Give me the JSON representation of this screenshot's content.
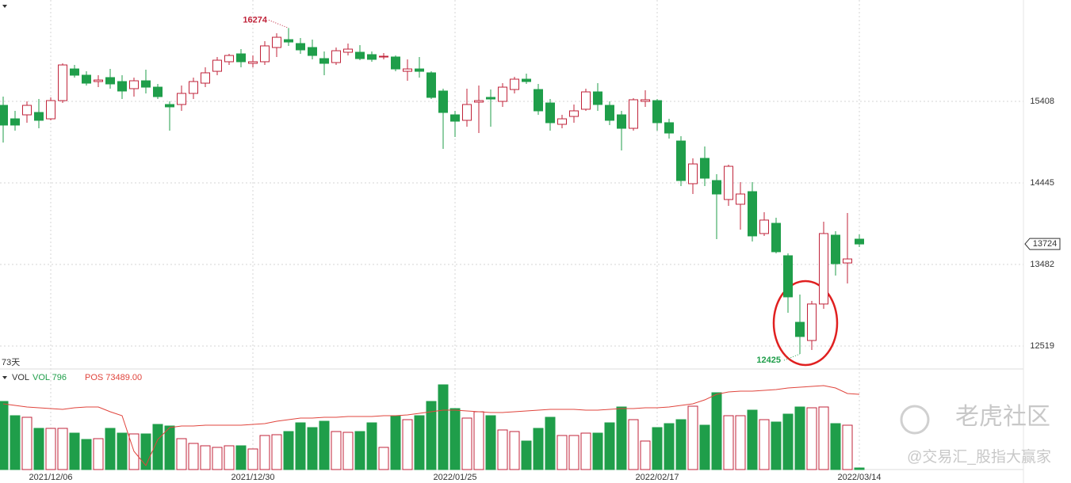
{
  "chart_data": {
    "type": "candlestick",
    "categories": [
      null,
      null,
      null,
      null,
      "2021/12/06",
      null,
      null,
      null,
      null,
      null,
      null,
      null,
      null,
      null,
      null,
      null,
      null,
      null,
      null,
      null,
      null,
      "2021/12/30",
      null,
      null,
      null,
      null,
      null,
      null,
      null,
      null,
      null,
      null,
      null,
      null,
      null,
      null,
      null,
      null,
      "2022/01/25",
      null,
      null,
      null,
      null,
      null,
      null,
      null,
      null,
      null,
      null,
      null,
      null,
      null,
      null,
      null,
      null,
      "2022/02/17",
      null,
      null,
      null,
      null,
      null,
      null,
      null,
      null,
      null,
      null,
      null,
      null,
      null,
      null,
      null,
      null,
      "2022/03/14"
    ],
    "open": [
      15361,
      15202,
      15249,
      15277,
      15202,
      15417,
      15791,
      15717,
      15642,
      15689,
      15642,
      15558,
      15651,
      15576,
      15371,
      15371,
      15502,
      15623,
      15763,
      15876,
      15969,
      15857,
      15876,
      16044,
      16137,
      16091,
      16044,
      15913,
      15866,
      15988,
      15988,
      15960,
      15932,
      15932,
      15763,
      15791,
      15745,
      15530,
      15249,
      15184,
      15399,
      15455,
      15408,
      15548,
      15670,
      15548,
      15389,
      15137,
      15230,
      15315,
      15520,
      15361,
      15249,
      15090,
      15408,
      15417,
      15156,
      14940,
      14436,
      14735,
      14473,
      14249,
      14193,
      14342,
      13847,
      13968,
      13585,
      12799,
      12584,
      13015,
      13828,
      13500,
      13781
    ],
    "high": [
      15464,
      15296,
      15408,
      15436,
      15455,
      15857,
      15838,
      15763,
      15717,
      15791,
      15717,
      15689,
      15782,
      15614,
      15408,
      15595,
      15689,
      15810,
      15932,
      15969,
      16025,
      15950,
      16119,
      16212,
      16274,
      16156,
      16137,
      15997,
      16044,
      16091,
      16072,
      15997,
      15978,
      15950,
      15904,
      15932,
      15763,
      15558,
      15296,
      15558,
      15595,
      15548,
      15623,
      15698,
      15735,
      15614,
      15436,
      15249,
      15371,
      15558,
      15623,
      15408,
      15296,
      15445,
      15539,
      15436,
      15202,
      14997,
      14735,
      14875,
      14548,
      14660,
      14454,
      14454,
      14099,
      14034,
      13613,
      13127,
      13052,
      13987,
      13875,
      14090,
      13837
    ],
    "low": [
      14922,
      15062,
      15156,
      15090,
      15184,
      15389,
      15689,
      15595,
      15576,
      15558,
      15436,
      15464,
      15502,
      15436,
      15062,
      15296,
      15436,
      15576,
      15717,
      15838,
      15810,
      15810,
      15838,
      15932,
      16063,
      15969,
      15904,
      15717,
      15838,
      15950,
      15894,
      15876,
      15904,
      15763,
      15651,
      15689,
      15436,
      14847,
      14987,
      15109,
      15034,
      15109,
      15343,
      15502,
      15614,
      15249,
      15062,
      15090,
      15156,
      15296,
      15296,
      15128,
      14828,
      15062,
      15343,
      15062,
      14969,
      14408,
      14314,
      14408,
      13781,
      14174,
      13893,
      13753,
      13819,
      13613,
      12912,
      12425,
      12472,
      12958,
      13351,
      13258,
      13688
    ],
    "close": [
      15128,
      15128,
      15361,
      15184,
      15417,
      15838,
      15717,
      15623,
      15660,
      15614,
      15530,
      15651,
      15576,
      15464,
      15343,
      15502,
      15642,
      15745,
      15894,
      15950,
      15876,
      15876,
      16063,
      16165,
      16109,
      16016,
      15950,
      15857,
      16006,
      16025,
      15913,
      15904,
      15941,
      15791,
      15791,
      15763,
      15455,
      15277,
      15174,
      15371,
      15417,
      15436,
      15576,
      15670,
      15642,
      15296,
      15156,
      15202,
      15296,
      15520,
      15371,
      15184,
      15090,
      15427,
      15427,
      15156,
      15034,
      14473,
      14669,
      14501,
      14314,
      14641,
      14314,
      13819,
      14006,
      13632,
      13099,
      12631,
      13015,
      13847,
      13491,
      13547,
      13724
    ],
    "ylim": [
      12257,
      16605
    ],
    "yticks": [
      15408,
      14445,
      13482,
      12519
    ],
    "up_color": "#c0233a",
    "down_color": "#1f9e4a",
    "period_label": "73天",
    "volume": {
      "title": "VOL",
      "legend": [
        "VOL 796",
        "POS 73489.00"
      ],
      "values": [
        1204,
        952,
        924,
        728,
        728,
        728,
        644,
        532,
        546,
        728,
        644,
        630,
        630,
        798,
        770,
        546,
        462,
        420,
        392,
        420,
        420,
        364,
        602,
        616,
        672,
        826,
        742,
        854,
        672,
        658,
        672,
        826,
        392,
        952,
        882,
        952,
        1204,
        1498,
        1078,
        910,
        1022,
        952,
        700,
        672,
        504,
        728,
        924,
        602,
        602,
        644,
        644,
        826,
        1106,
        882,
        504,
        742,
        812,
        882,
        1120,
        784,
        1358,
        952,
        952,
        1050,
        882,
        840,
        980,
        1106,
        1092,
        1106,
        812,
        784,
        28
      ],
      "line": [
        1162,
        1134,
        1106,
        1092,
        1078,
        1064,
        1092,
        1106,
        1106,
        1022,
        952,
        322,
        70,
        532,
        742,
        770,
        770,
        784,
        784,
        784,
        784,
        798,
        812,
        854,
        882,
        910,
        910,
        924,
        924,
        938,
        938,
        938,
        952,
        952,
        966,
        994,
        1022,
        1050,
        1050,
        1036,
        1022,
        1008,
        1008,
        1022,
        1036,
        1050,
        1064,
        1064,
        1064,
        1050,
        1050,
        1064,
        1078,
        1078,
        1092,
        1092,
        1106,
        1134,
        1162,
        1232,
        1330,
        1372,
        1386,
        1386,
        1400,
        1414,
        1442,
        1456,
        1470,
        1484,
        1442,
        1344,
        1330
      ],
      "line_color": "#e0443c",
      "ylim": [
        0,
        1750
      ]
    },
    "watermark": [
      "老虎社区",
      "@交易汇_股指大赢家"
    ]
  }
}
